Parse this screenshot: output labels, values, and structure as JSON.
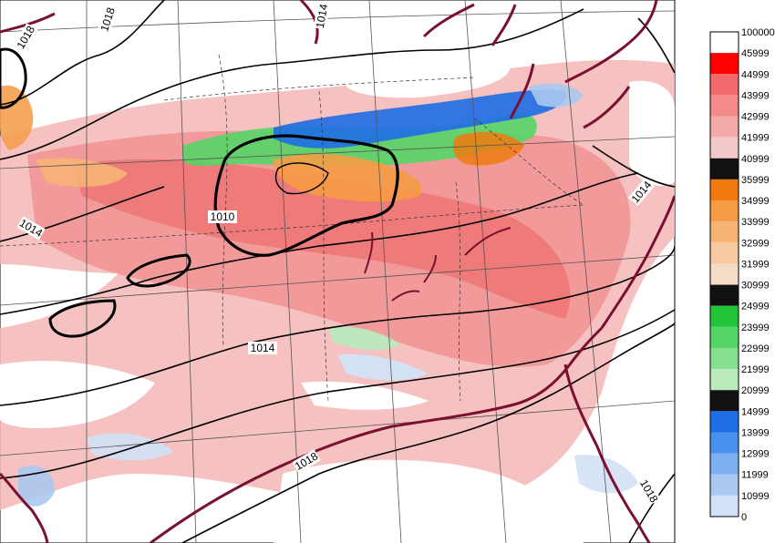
{
  "isobar_labels": [
    "1018",
    "1018",
    "1014",
    "1010",
    "1014",
    "1014",
    "1014",
    "1018",
    "1018"
  ],
  "colorbar": {
    "labels": [
      "100000",
      "45999",
      "44999",
      "43999",
      "42999",
      "41999",
      "40999",
      "35999",
      "34999",
      "33999",
      "32999",
      "31999",
      "30999",
      "24999",
      "23999",
      "22999",
      "21999",
      "20999",
      "14999",
      "13999",
      "12999",
      "11999",
      "10999",
      "0"
    ],
    "colors": [
      "#ffffff",
      "#ff0000",
      "#f36b6b",
      "#f58a8a",
      "#f4a9a9",
      "#f2c8c8",
      "#111111",
      "#f07a10",
      "#f59b44",
      "#f7b276",
      "#f7c9a0",
      "#f5dcc6",
      "#111111",
      "#22c43a",
      "#55d566",
      "#86df8e",
      "#b9ebbd",
      "#111111",
      "#1e6ee6",
      "#4a91ee",
      "#7cb0f0",
      "#aac9f0",
      "#d2e1f5"
    ]
  },
  "colors": {
    "coast": "#7a1030",
    "isobar": "#000000",
    "grid": "#555555"
  }
}
